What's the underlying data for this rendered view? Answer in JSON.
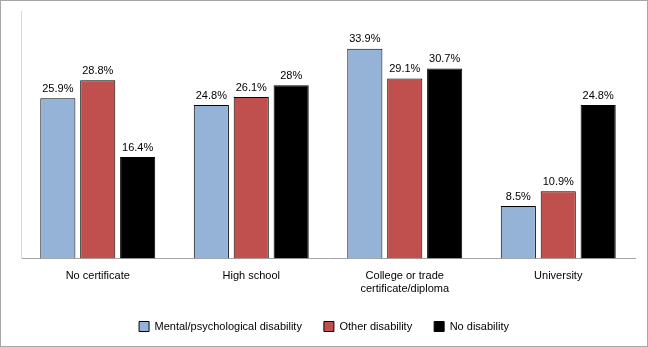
{
  "chart_data": {
    "type": "bar",
    "categories": [
      "No certificate",
      "High school",
      "College or trade certificate/diploma",
      "University"
    ],
    "series": [
      {
        "name": "Mental/psychological disability",
        "color": "#95b3d7",
        "values": [
          25.9,
          24.8,
          33.9,
          8.5
        ],
        "value_labels": [
          "25.9%",
          "24.8%",
          "33.9%",
          "8.5%"
        ]
      },
      {
        "name": "Other disability",
        "color": "#c0504d",
        "values": [
          28.8,
          26.1,
          29.1,
          10.9
        ],
        "value_labels": [
          "28.8%",
          "26.1%",
          "29.1%",
          "10.9%"
        ]
      },
      {
        "name": "No disability",
        "color": "#000000",
        "values": [
          16.4,
          28,
          30.7,
          24.8
        ],
        "value_labels": [
          "16.4%",
          "28%",
          "30.7%",
          "24.8%"
        ]
      }
    ],
    "ylim": [
      0,
      40
    ],
    "grid": false,
    "legend": "bottom",
    "data_labels": true,
    "tick_labels": "x"
  }
}
